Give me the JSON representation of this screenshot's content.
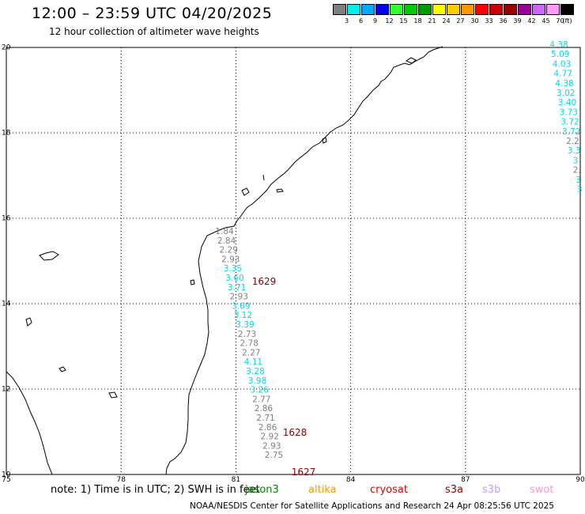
{
  "header": {
    "title": "12:00 – 23:59 UTC 04/20/2025",
    "subtitle": "12 hour collection of altimeter wave heights"
  },
  "legend": {
    "colors": [
      "#808080",
      "#00f0f0",
      "#00aaff",
      "#0000ee",
      "#33ff33",
      "#00cc00",
      "#009900",
      "#ffff00",
      "#ffcc00",
      "#ff9900",
      "#ff0000",
      "#cc0000",
      "#990000",
      "#990099",
      "#cc66ff",
      "#ff99ff",
      "#000000"
    ],
    "labels": [
      "3",
      "6",
      "9",
      "12",
      "15",
      "18",
      "21",
      "24",
      "27",
      "30",
      "33",
      "36",
      "39",
      "42",
      "45",
      "70",
      "(ft)"
    ]
  },
  "map": {
    "y_axis": {
      "labels": [
        "20",
        "18",
        "16",
        "14",
        "12",
        "10"
      ]
    },
    "x_axis": {
      "labels": [
        "75",
        "78",
        "81",
        "84",
        "87",
        "90"
      ]
    },
    "lon_range": [
      75,
      90
    ],
    "lat_range": [
      10,
      20
    ],
    "track_east": {
      "heights": [
        "4.38",
        "5.09",
        "4.03",
        "4.77",
        "4.38",
        "3.02",
        "3.40",
        "3.73",
        "3.72",
        "3.72",
        "2.2",
        "3.3",
        "3",
        "2.",
        "3",
        "3"
      ],
      "colors": [
        "cyan",
        "cyan",
        "cyan",
        "cyan",
        "cyan",
        "cyan",
        "cyan",
        "cyan",
        "cyan",
        "cyan",
        "gray",
        "cyan",
        "cyan",
        "gray",
        "cyan",
        "cyan"
      ]
    },
    "track_coast": {
      "heights": [
        "1.84",
        "2.84",
        "2.29",
        "2.93",
        "3.35",
        "3.60",
        "3.71",
        "2.93",
        "3.69",
        "3.12",
        "3.39",
        "2.73",
        "2.78",
        "2.27",
        "4.11",
        "3.28",
        "3.98",
        "3.26",
        "2.77",
        "2.86",
        "2.71",
        "2.86",
        "2.92",
        "2.93",
        "2.75"
      ],
      "colors": [
        "gray",
        "gray",
        "gray",
        "gray",
        "cyan",
        "cyan",
        "cyan",
        "gray",
        "cyan",
        "cyan",
        "cyan",
        "gray",
        "gray",
        "gray",
        "cyan",
        "cyan",
        "cyan",
        "cyan",
        "gray",
        "gray",
        "gray",
        "gray",
        "gray",
        "gray",
        "gray"
      ]
    },
    "pass_labels": [
      "1629",
      "1628",
      "1627"
    ]
  },
  "notes": {
    "note_text": "note:  1) Time is in UTC;  2) SWH is in feet",
    "sat_jason3": "jason3",
    "sat_altika": "altika",
    "sat_cryosat": "cryosat",
    "sat_s3a": "s3a",
    "sat_s3b": "s3b",
    "sat_swot": "swot"
  },
  "footer": {
    "text": "NOAA/NESDIS Center for Satellite Applications and Research    24 Apr 08:25:56 UTC 2025"
  },
  "styles": {
    "gray": "#808080",
    "cyan": "#00d8e8",
    "pass_label_color": "#8b0000",
    "jason3": "#008000",
    "altika": "#ff9900",
    "cryosat": "#e00000",
    "s3a": "#990000",
    "s3b": "#c0a0ff",
    "swot": "#ff99cc"
  }
}
